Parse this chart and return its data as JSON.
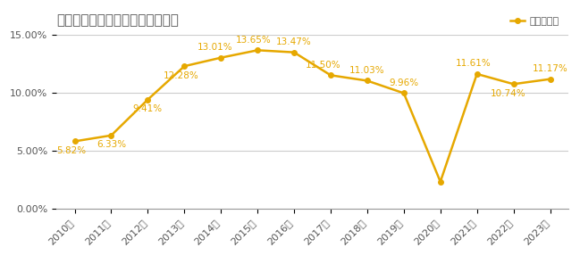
{
  "title": "ブリヂストンの営業利益率の推移",
  "years": [
    "2010年",
    "2011年",
    "2012年",
    "2013年",
    "2014年",
    "2015年",
    "2016年",
    "2017年",
    "2018年",
    "2019年",
    "2020年",
    "2021年",
    "2022年",
    "2023年"
  ],
  "values": [
    5.82,
    6.33,
    9.41,
    12.28,
    13.01,
    13.65,
    13.47,
    11.5,
    11.03,
    9.96,
    2.35,
    11.61,
    10.74,
    11.17
  ],
  "labels": [
    "5.82%",
    "6.33%",
    "9.41%",
    "12.28%",
    "13.01%",
    "13.65%",
    "13.47%",
    "11.50%",
    "11.03%",
    "9.96%",
    "",
    "11.61%",
    "10.74%",
    "11.17%"
  ],
  "line_color": "#E6A800",
  "line_width": 1.8,
  "marker": "o",
  "marker_size": 4,
  "legend_label": "営業利益率",
  "legend_color": "#E6A800",
  "ylim": [
    0,
    15
  ],
  "yticks": [
    0,
    5,
    10,
    15
  ],
  "ytick_labels": [
    "0.00%",
    "5.00%",
    "10.00%",
    "15.00%"
  ],
  "grid_color": "#cccccc",
  "title_fontsize": 11,
  "label_fontsize": 7.5,
  "tick_fontsize": 8,
  "background_color": "#ffffff",
  "title_color": "#555555"
}
